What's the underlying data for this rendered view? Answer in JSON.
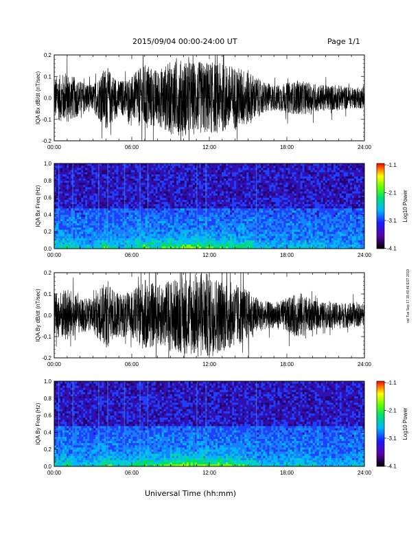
{
  "header": {
    "date_range": "2015/09/04  00:00-24:00 UT",
    "page": "Page 1/1"
  },
  "side_stamp": "rwt Tue Sep 17 15:43:46 EST 2019",
  "colors": {
    "waveform": "#000000",
    "spectrogram_bg": "#2a2ab8"
  },
  "chart_data": [
    {
      "type": "line",
      "name": "bx-waveform",
      "ylabel": "IQA Bx dB/dt (nT/sec)",
      "xlabel": "",
      "x_range_hours": [
        0,
        24
      ],
      "ylim": [
        -0.2,
        0.2
      ],
      "xticks": [
        "00:00",
        "06:00",
        "12:00",
        "18:00",
        "24:00"
      ],
      "yticks": [
        "-0.2",
        "-0.1",
        "0.0",
        "0.1",
        "0.2"
      ],
      "envelope": [
        {
          "t": 0.0,
          "amp": 0.1
        },
        {
          "t": 1.0,
          "amp": 0.12
        },
        {
          "t": 2.0,
          "amp": 0.08
        },
        {
          "t": 3.0,
          "amp": 0.06
        },
        {
          "t": 4.0,
          "amp": 0.15
        },
        {
          "t": 5.0,
          "amp": 0.08
        },
        {
          "t": 6.0,
          "amp": 0.1
        },
        {
          "t": 7.0,
          "amp": 0.16
        },
        {
          "t": 8.0,
          "amp": 0.13
        },
        {
          "t": 9.0,
          "amp": 0.17
        },
        {
          "t": 10.0,
          "amp": 0.18
        },
        {
          "t": 11.0,
          "amp": 0.17
        },
        {
          "t": 12.0,
          "amp": 0.17
        },
        {
          "t": 13.0,
          "amp": 0.16
        },
        {
          "t": 14.0,
          "amp": 0.15
        },
        {
          "t": 15.0,
          "amp": 0.13
        },
        {
          "t": 16.0,
          "amp": 0.08
        },
        {
          "t": 17.0,
          "amp": 0.06
        },
        {
          "t": 18.0,
          "amp": 0.07
        },
        {
          "t": 19.0,
          "amp": 0.08
        },
        {
          "t": 20.0,
          "amp": 0.07
        },
        {
          "t": 21.0,
          "amp": 0.06
        },
        {
          "t": 22.0,
          "amp": 0.06
        },
        {
          "t": 23.0,
          "amp": 0.05
        },
        {
          "t": 24.0,
          "amp": 0.05
        }
      ]
    },
    {
      "type": "heatmap",
      "name": "bx-spectrogram",
      "ylabel": "IQA Bx Freq (Hz)",
      "x_range_hours": [
        0,
        24
      ],
      "ylim": [
        0.0,
        1.0
      ],
      "xticks": [
        "00:00",
        "06:00",
        "12:00",
        "18:00",
        "24:00"
      ],
      "yticks": [
        "0.0",
        "0.2",
        "0.4",
        "0.6",
        "0.8",
        "1.0"
      ],
      "colorbar": {
        "label": "Log10 Power",
        "range": [
          -4.1,
          -1.1
        ],
        "ticks": [
          "-1.1",
          "-2.1",
          "-3.1",
          "-4.1"
        ]
      }
    },
    {
      "type": "line",
      "name": "by-waveform",
      "ylabel": "IQA By dB/dt (nT/sec)",
      "xlabel": "",
      "x_range_hours": [
        0,
        24
      ],
      "ylim": [
        -0.2,
        0.2
      ],
      "xticks": [
        "00:00",
        "06:00",
        "12:00",
        "18:00",
        "24:00"
      ],
      "yticks": [
        "-0.2",
        "-0.1",
        "0.0",
        "0.1",
        "0.2"
      ],
      "envelope": [
        {
          "t": 0.0,
          "amp": 0.1
        },
        {
          "t": 1.0,
          "amp": 0.13
        },
        {
          "t": 2.0,
          "amp": 0.08
        },
        {
          "t": 3.0,
          "amp": 0.08
        },
        {
          "t": 4.0,
          "amp": 0.16
        },
        {
          "t": 5.0,
          "amp": 0.1
        },
        {
          "t": 6.0,
          "amp": 0.11
        },
        {
          "t": 7.0,
          "amp": 0.17
        },
        {
          "t": 8.0,
          "amp": 0.14
        },
        {
          "t": 9.0,
          "amp": 0.17
        },
        {
          "t": 10.0,
          "amp": 0.18
        },
        {
          "t": 11.0,
          "amp": 0.2
        },
        {
          "t": 12.0,
          "amp": 0.2
        },
        {
          "t": 13.0,
          "amp": 0.17
        },
        {
          "t": 14.0,
          "amp": 0.15
        },
        {
          "t": 15.0,
          "amp": 0.12
        },
        {
          "t": 16.0,
          "amp": 0.07
        },
        {
          "t": 17.0,
          "amp": 0.06
        },
        {
          "t": 18.0,
          "amp": 0.08
        },
        {
          "t": 19.0,
          "amp": 0.11
        },
        {
          "t": 20.0,
          "amp": 0.07
        },
        {
          "t": 21.0,
          "amp": 0.06
        },
        {
          "t": 22.0,
          "amp": 0.06
        },
        {
          "t": 23.0,
          "amp": 0.06
        },
        {
          "t": 24.0,
          "amp": 0.05
        }
      ]
    },
    {
      "type": "heatmap",
      "name": "by-spectrogram",
      "ylabel": "IQA By Freq (Hz)",
      "x_range_hours": [
        0,
        24
      ],
      "ylim": [
        0.0,
        1.0
      ],
      "xticks": [
        "00:00",
        "06:00",
        "12:00",
        "18:00",
        "24:00"
      ],
      "yticks": [
        "0.0",
        "0.2",
        "0.4",
        "0.6",
        "0.8",
        "1.0"
      ],
      "colorbar": {
        "label": "Log10 Power",
        "range": [
          -4.1,
          -1.1
        ],
        "ticks": [
          "-1.1",
          "-2.1",
          "-3.1",
          "-4.1"
        ]
      }
    }
  ],
  "x_axis_title": "Universal Time (hh:mm)"
}
